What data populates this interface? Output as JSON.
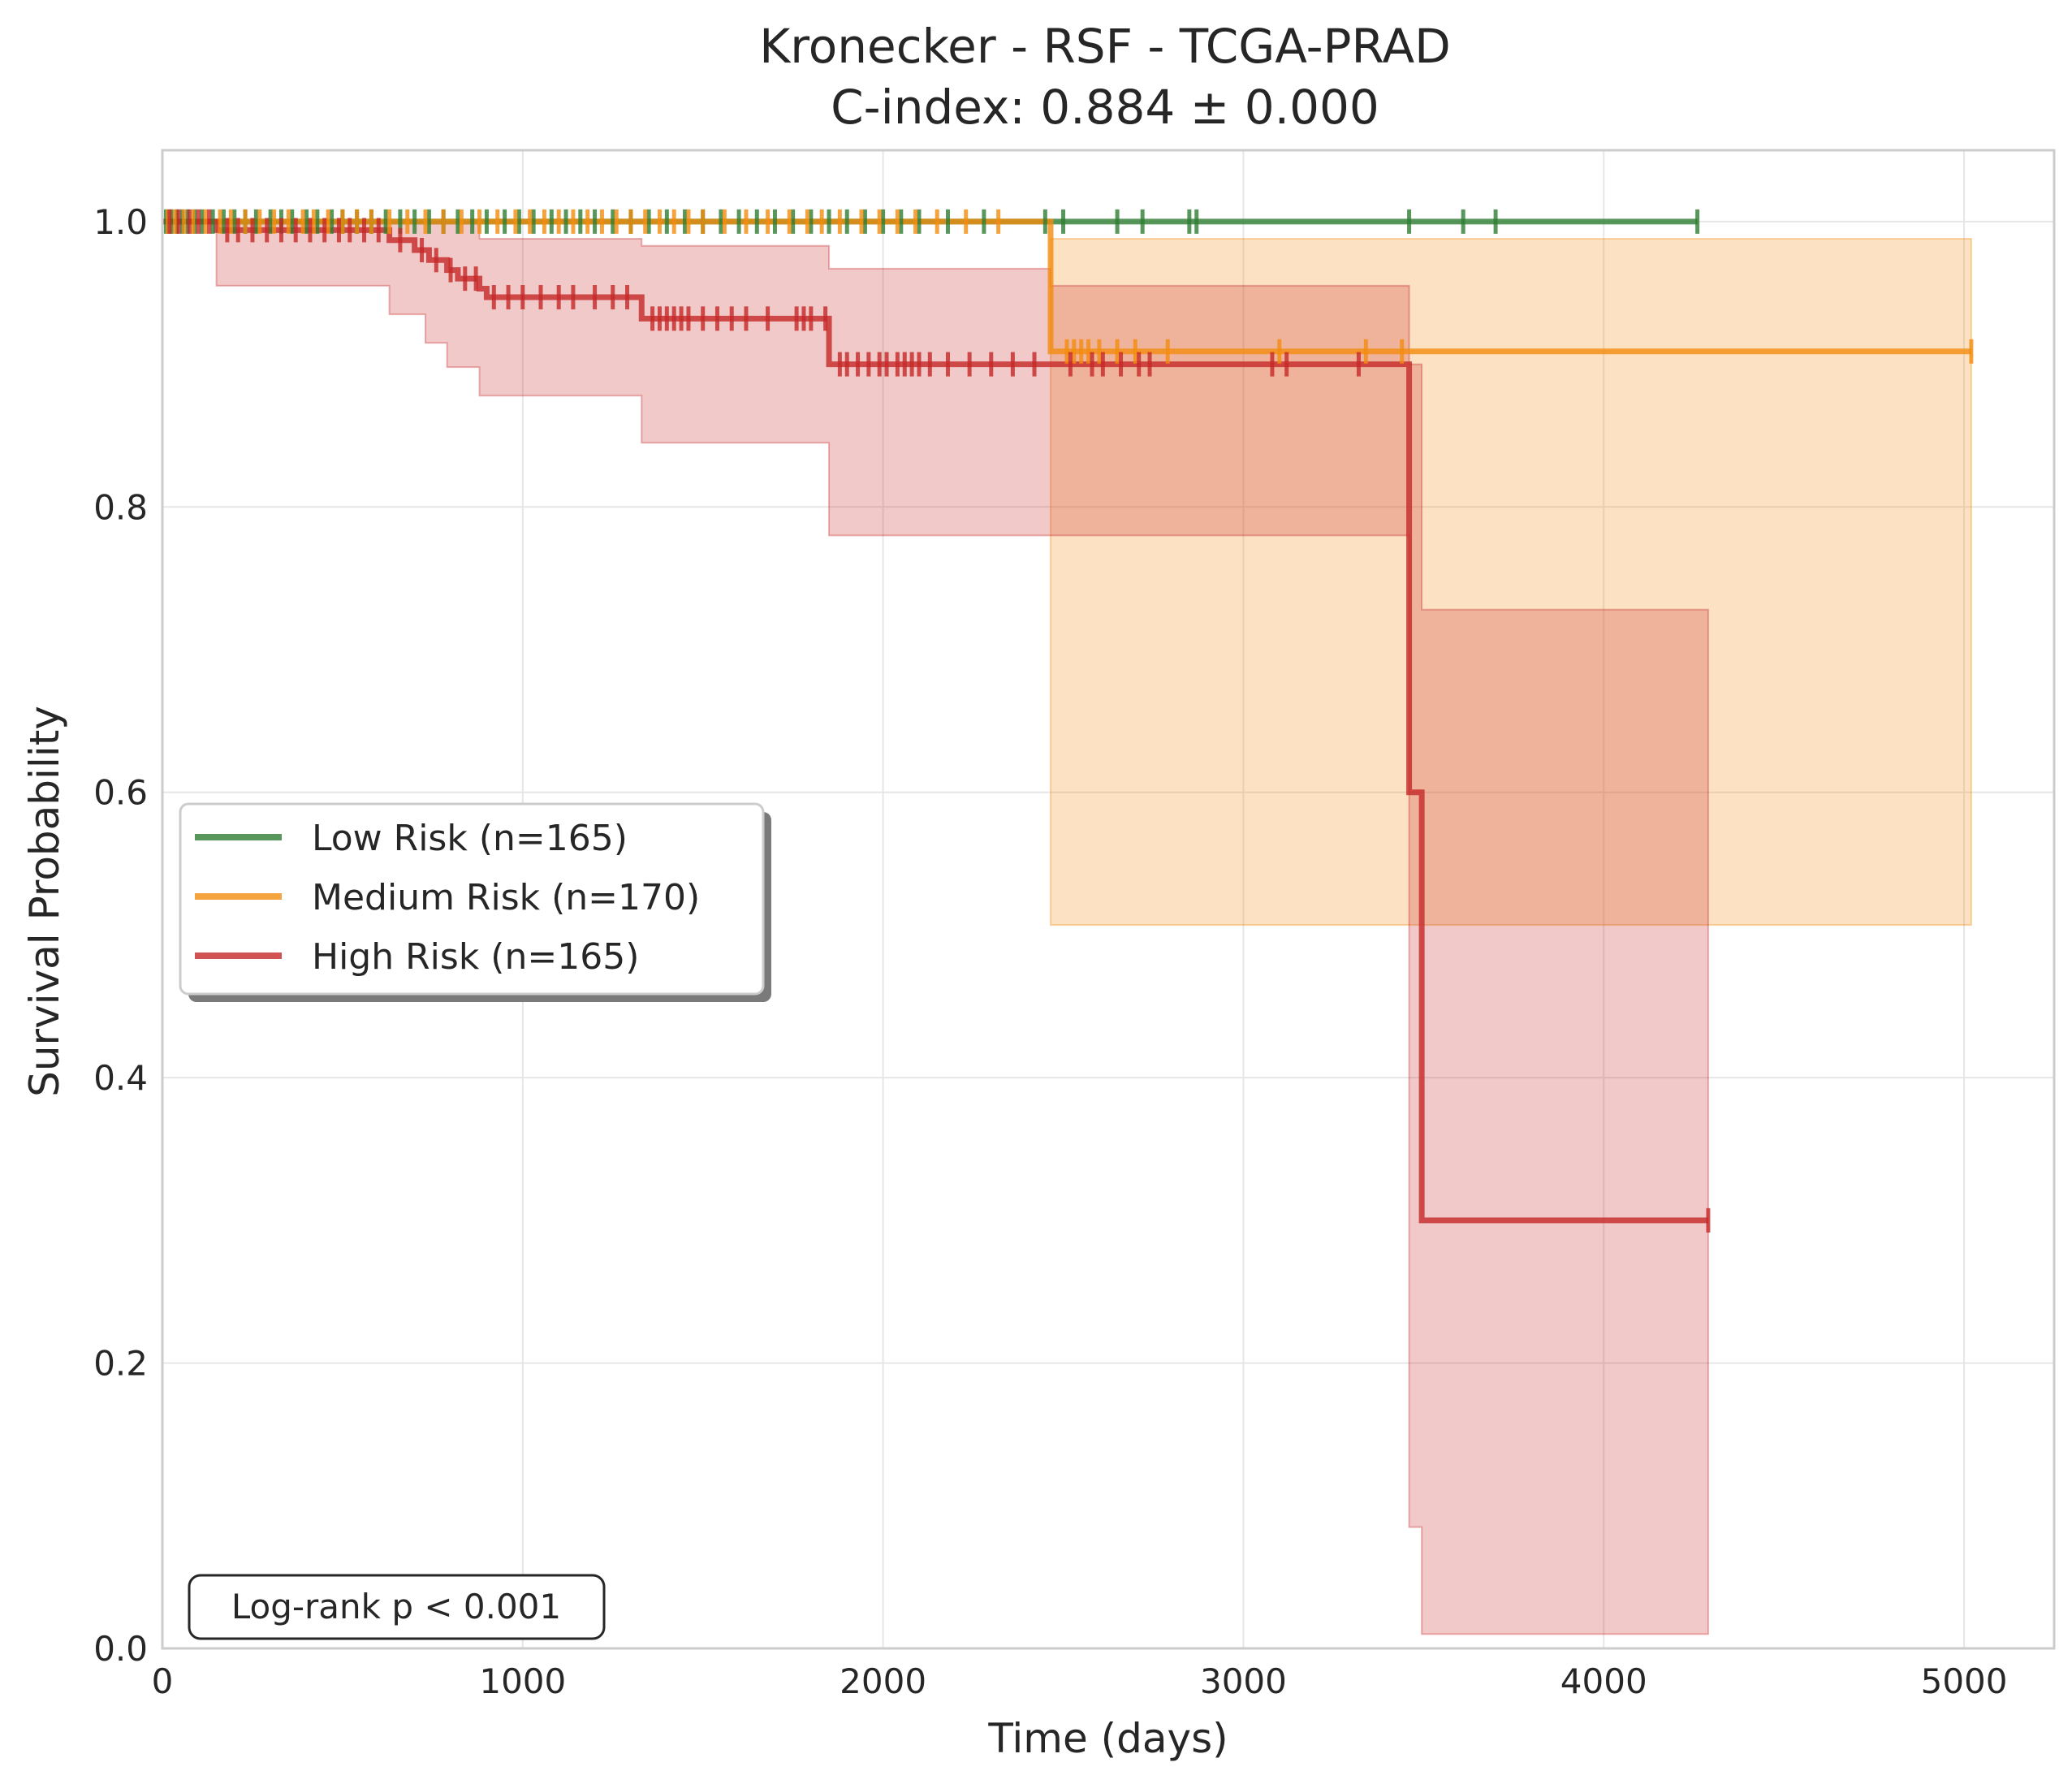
{
  "chart_data": {
    "type": "line",
    "subtype": "kaplan-meier",
    "title": "Kronecker - RSF - TCGA-PRAD",
    "subtitle": "C-index: 0.884 ± 0.000",
    "xlabel": "Time (days)",
    "ylabel": "Survival Probability",
    "xlim": [
      0,
      5250
    ],
    "ylim": [
      0,
      1.05
    ],
    "x_ticks": [
      0,
      1000,
      2000,
      3000,
      4000,
      5000
    ],
    "y_ticks": [
      0.0,
      0.2,
      0.4,
      0.6,
      0.8,
      1.0
    ],
    "x_tick_labels": [
      "0",
      "1000",
      "2000",
      "3000",
      "4000",
      "5000"
    ],
    "y_tick_labels": [
      "0.0",
      "0.2",
      "0.4",
      "0.6",
      "0.8",
      "1.0"
    ],
    "grid": true,
    "legend_position": "center-left",
    "annotation": "Log-rank p < 0.001",
    "series": [
      {
        "name": "Low Risk (n=165)",
        "color": "#2e7d32",
        "steps": [
          [
            0,
            1.0
          ],
          [
            4260,
            1.0
          ]
        ],
        "ci": [],
        "censor_times": [
          10,
          25,
          40,
          55,
          70,
          90,
          110,
          140,
          170,
          200,
          230,
          260,
          300,
          330,
          360,
          400,
          430,
          470,
          500,
          540,
          580,
          620,
          660,
          700,
          740,
          780,
          820,
          860,
          900,
          950,
          990,
          1030,
          1080,
          1120,
          1160,
          1200,
          1250,
          1300,
          1350,
          1400,
          1450,
          1500,
          1550,
          1600,
          1650,
          1700,
          1750,
          1800,
          1850,
          1900,
          1950,
          2000,
          2050,
          2100,
          2180,
          2280,
          2450,
          2500,
          2650,
          2720,
          2850,
          2870,
          3460,
          3610,
          3700,
          4260
        ]
      },
      {
        "name": "Medium Risk (n=170)",
        "color": "#f28c0f",
        "steps": [
          [
            0,
            1.0
          ],
          [
            2465,
            1.0
          ],
          [
            2465,
            0.909
          ],
          [
            5020,
            0.909
          ]
        ],
        "ci": [
          [
            2465,
            0.507,
            0.988
          ],
          [
            5020,
            0.507,
            0.988
          ]
        ],
        "censor_times": [
          15,
          35,
          60,
          85,
          120,
          160,
          190,
          230,
          270,
          310,
          350,
          390,
          420,
          460,
          500,
          540,
          580,
          630,
          680,
          730,
          780,
          830,
          880,
          930,
          980,
          1020,
          1060,
          1100,
          1140,
          1180,
          1220,
          1260,
          1300,
          1340,
          1380,
          1420,
          1460,
          1500,
          1560,
          1620,
          1680,
          1740,
          1790,
          1830,
          1880,
          1940,
          1990,
          2040,
          2090,
          2150,
          2230,
          2320,
          2510,
          2530,
          2550,
          2570,
          2600,
          2650,
          2700,
          2790,
          3100,
          3340,
          3440,
          5020
        ]
      },
      {
        "name": "High Risk (n=165)",
        "color": "#c62828",
        "steps": [
          [
            0,
            1.0
          ],
          [
            150,
            1.0
          ],
          [
            150,
            0.994
          ],
          [
            630,
            0.994
          ],
          [
            630,
            0.987
          ],
          [
            700,
            0.987
          ],
          [
            700,
            0.98
          ],
          [
            740,
            0.98
          ],
          [
            740,
            0.973
          ],
          [
            790,
            0.973
          ],
          [
            790,
            0.966
          ],
          [
            820,
            0.966
          ],
          [
            820,
            0.96
          ],
          [
            880,
            0.96
          ],
          [
            880,
            0.953
          ],
          [
            900,
            0.953
          ],
          [
            900,
            0.947
          ],
          [
            1330,
            0.947
          ],
          [
            1330,
            0.932
          ],
          [
            1850,
            0.932
          ],
          [
            1850,
            0.9
          ],
          [
            3460,
            0.9
          ],
          [
            3460,
            0.6
          ],
          [
            3495,
            0.6
          ],
          [
            3495,
            0.3
          ],
          [
            4290,
            0.3
          ]
        ],
        "ci": [
          [
            0,
            1.0,
            1.0
          ],
          [
            150,
            0.955,
            1.0
          ],
          [
            630,
            0.935,
            1.0
          ],
          [
            730,
            0.915,
            1.0
          ],
          [
            790,
            0.898,
            1.0
          ],
          [
            880,
            0.878,
            0.988
          ],
          [
            1330,
            0.845,
            0.983
          ],
          [
            1850,
            0.78,
            0.967
          ],
          [
            2465,
            0.78,
            0.955
          ],
          [
            3460,
            0.085,
            0.9
          ],
          [
            3495,
            0.01,
            0.728
          ],
          [
            4290,
            0.01,
            0.728
          ]
        ],
        "censor_times": [
          20,
          45,
          75,
          100,
          130,
          180,
          210,
          250,
          290,
          330,
          370,
          410,
          450,
          490,
          520,
          560,
          600,
          660,
          720,
          760,
          800,
          840,
          870,
          920,
          960,
          1000,
          1050,
          1100,
          1140,
          1200,
          1250,
          1290,
          1360,
          1380,
          1400,
          1420,
          1440,
          1460,
          1500,
          1540,
          1580,
          1620,
          1680,
          1760,
          1780,
          1800,
          1840,
          1880,
          1900,
          1930,
          1960,
          1990,
          2010,
          2040,
          2060,
          2080,
          2100,
          2130,
          2180,
          2240,
          2300,
          2360,
          2420,
          2520,
          2580,
          2610,
          2660,
          2710,
          2740,
          3080,
          3120,
          3320,
          4290
        ]
      }
    ]
  }
}
